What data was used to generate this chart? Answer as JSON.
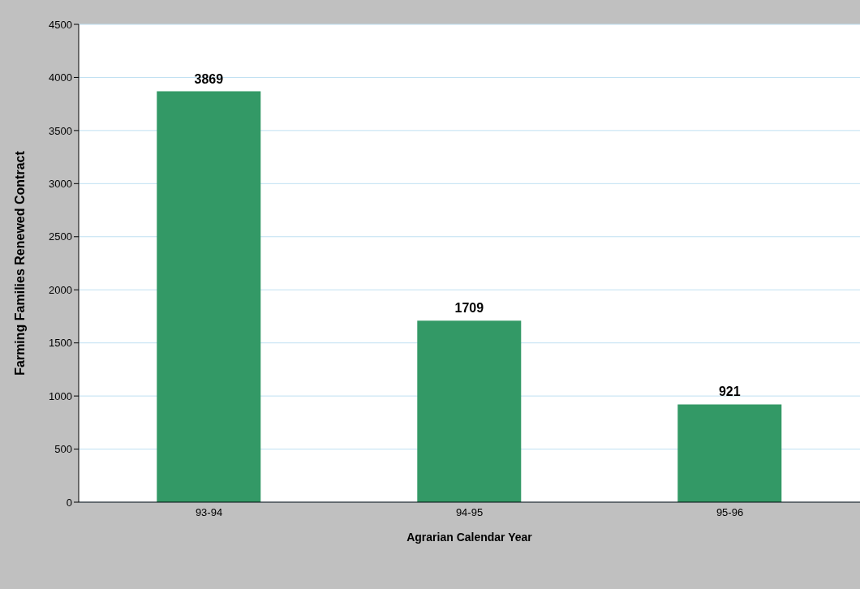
{
  "chart_data": {
    "type": "bar",
    "xlabel": "Agrarian Calendar Year",
    "ylabel": "Farming Families Renewed Contract",
    "categories": [
      "93-94",
      "94-95",
      "95-96"
    ],
    "values": [
      3869,
      1709,
      921
    ],
    "color": "#339966",
    "ylim": [
      0,
      4500
    ],
    "yticks": [
      0,
      500,
      1000,
      1500,
      2000,
      2500,
      3000,
      3500,
      4000,
      4500
    ],
    "grid": "y",
    "data_labels": true
  }
}
